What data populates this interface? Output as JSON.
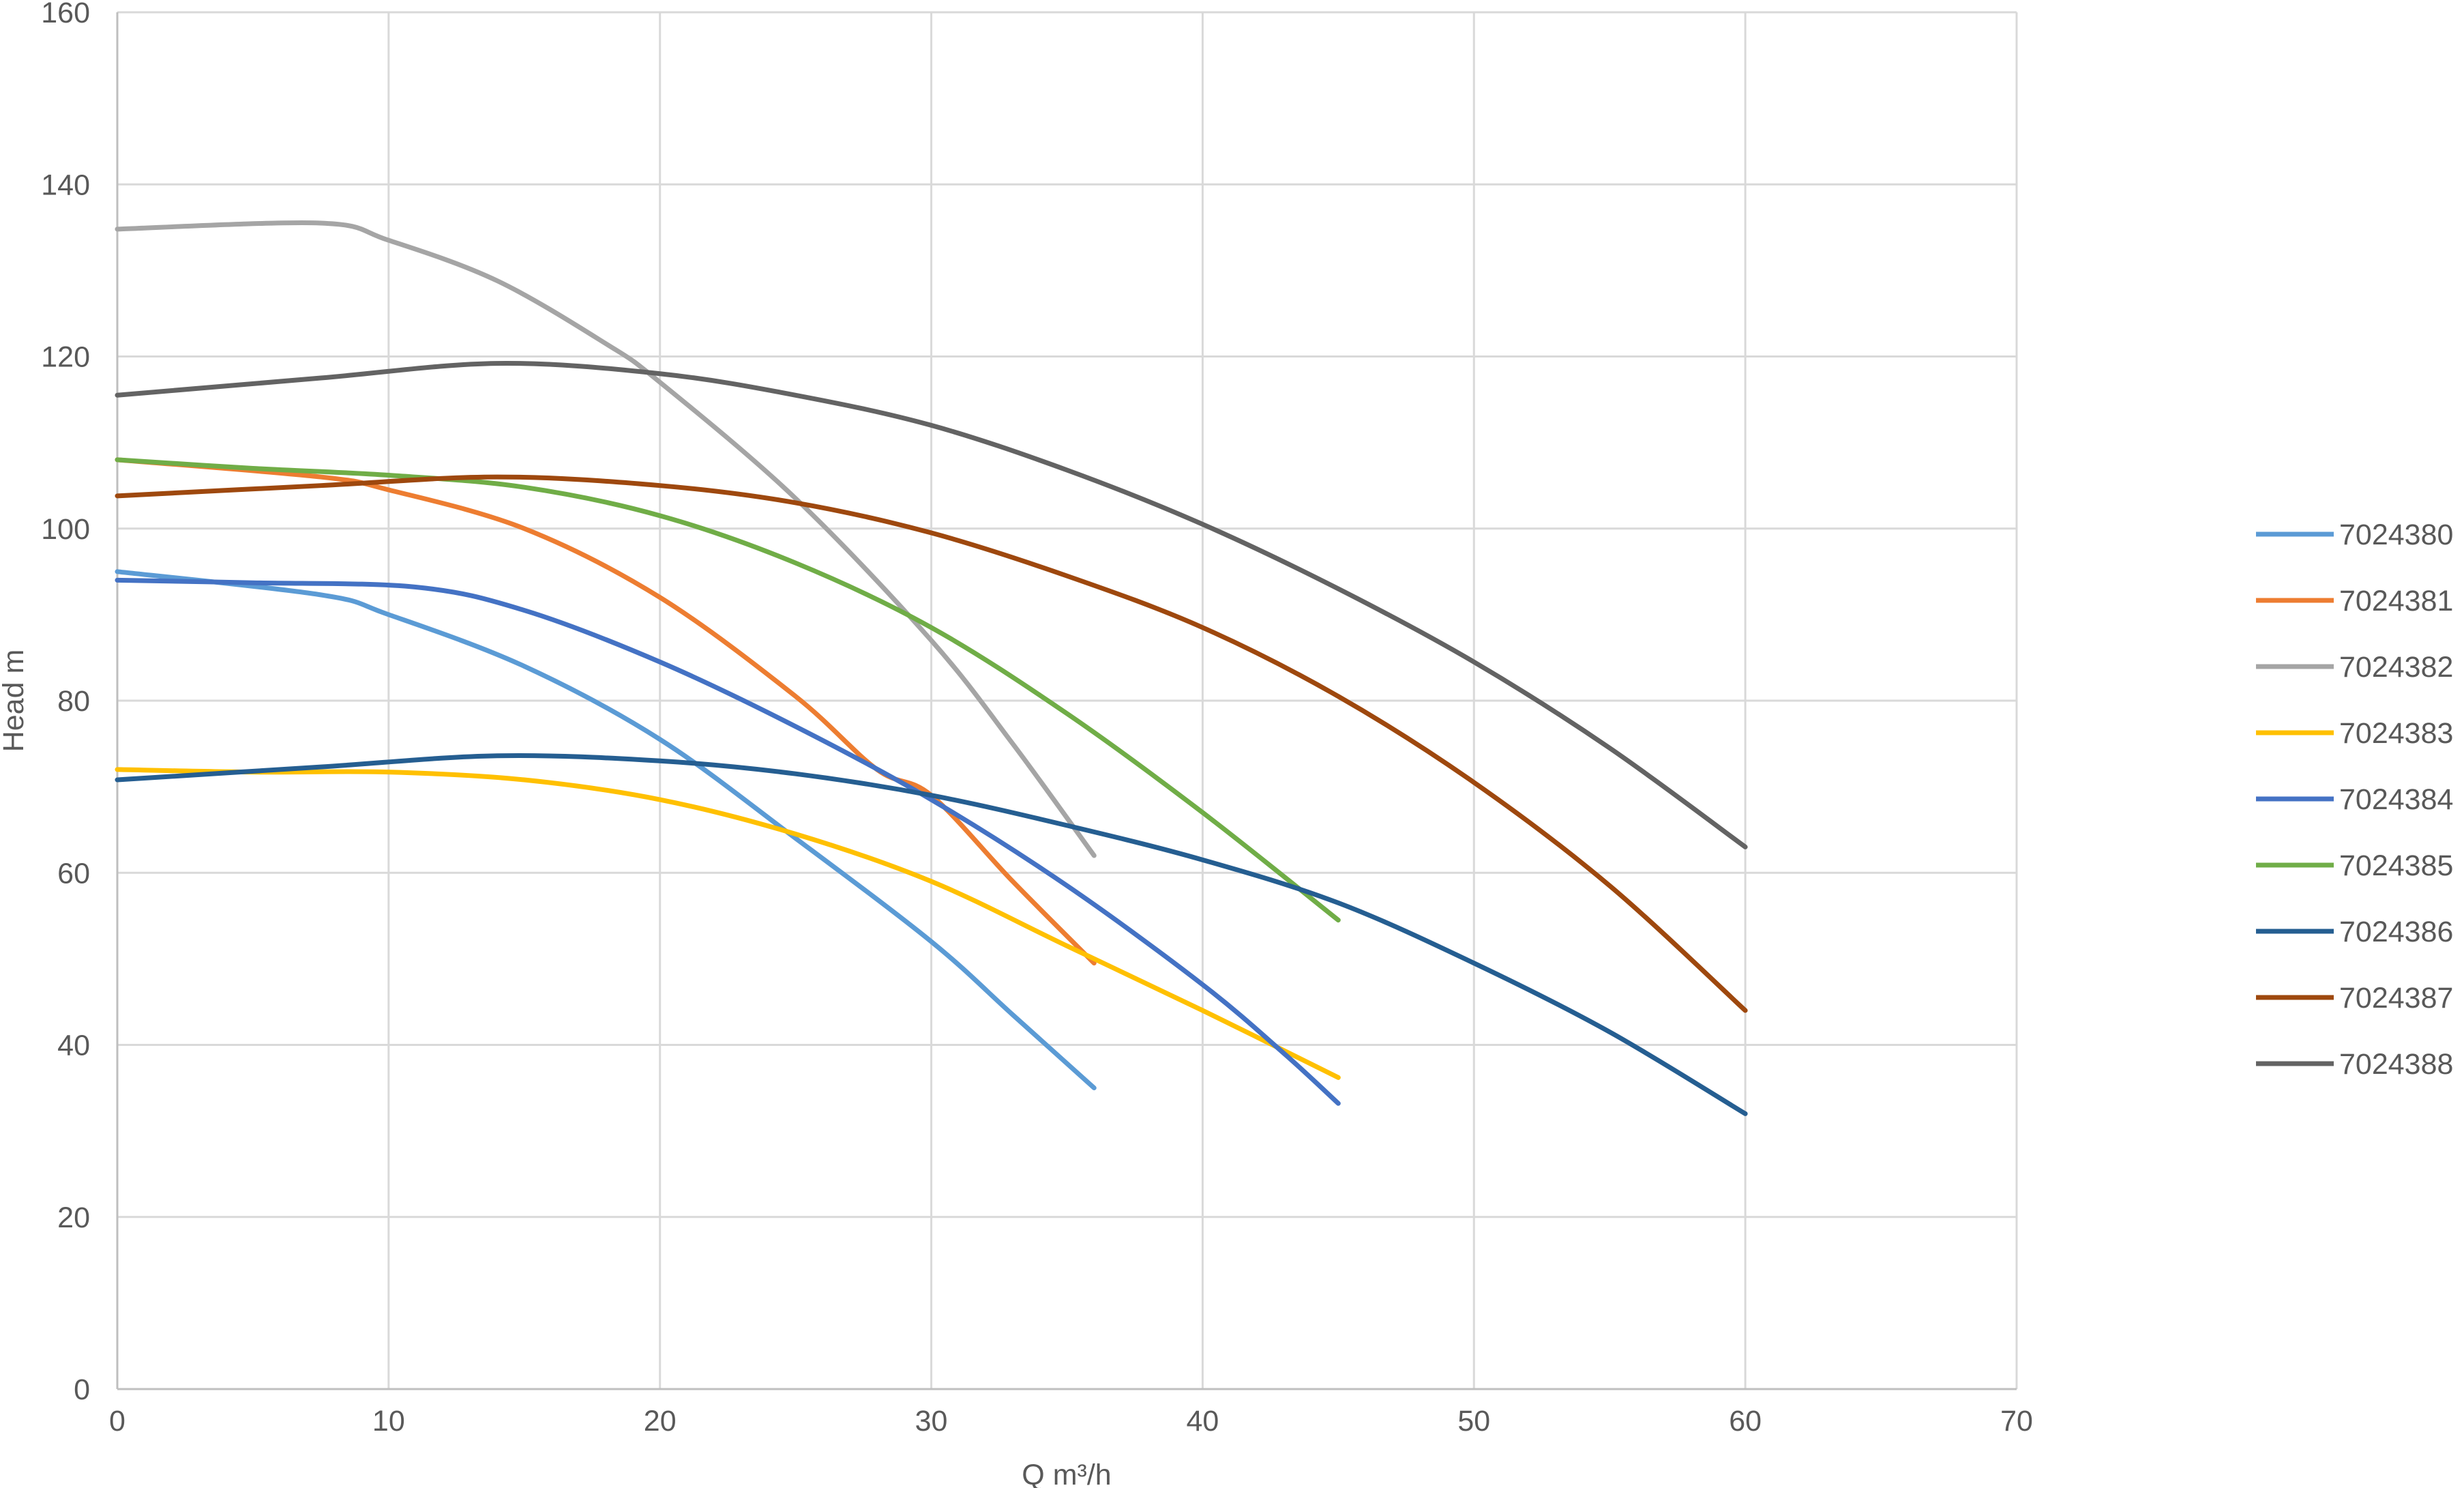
{
  "chart_data": {
    "type": "line",
    "title": "",
    "xlabel": "Q m³/h",
    "ylabel": "Head m",
    "xlim": [
      0,
      70
    ],
    "ylim": [
      0,
      160
    ],
    "x_ticks": [
      0,
      10,
      20,
      30,
      40,
      50,
      60,
      70
    ],
    "y_ticks": [
      0,
      20,
      40,
      60,
      80,
      100,
      120,
      140,
      160
    ],
    "grid": true,
    "legend_position": "right",
    "series": [
      {
        "name": "7024380",
        "color": "#5B9BD5",
        "x": [
          0,
          7.5,
          10,
          15,
          20,
          25,
          30,
          33,
          36
        ],
        "y": [
          95,
          92.3,
          90,
          84,
          75.5,
          64,
          52,
          43.5,
          35
        ]
      },
      {
        "name": "7024381",
        "color": "#ED7D31",
        "x": [
          0,
          7.5,
          10,
          15,
          20,
          25,
          28,
          30,
          33,
          36
        ],
        "y": [
          108,
          106,
          104.5,
          100,
          92,
          80.5,
          72,
          69,
          59,
          49.5
        ]
      },
      {
        "name": "7024382",
        "color": "#A5A5A5",
        "x": [
          0,
          7.5,
          10,
          14,
          18,
          20,
          25,
          30,
          33,
          36
        ],
        "y": [
          134.8,
          135.5,
          133.5,
          128.8,
          121.5,
          117,
          103.5,
          87,
          75,
          62
        ]
      },
      {
        "name": "7024383",
        "color": "#FFC000",
        "x": [
          0,
          5,
          10,
          15,
          20,
          25,
          30,
          35,
          40,
          45
        ],
        "y": [
          72,
          71.7,
          71.7,
          70.8,
          68.5,
          64.5,
          59,
          51.5,
          44,
          36.2
        ]
      },
      {
        "name": "7024384",
        "color": "#4472C4",
        "x": [
          0,
          5,
          11,
          15,
          20,
          25,
          30,
          35,
          40,
          43,
          45
        ],
        "y": [
          94,
          93.7,
          93.2,
          90.5,
          84.5,
          77,
          68.5,
          58.5,
          47,
          39,
          33.2
        ]
      },
      {
        "name": "7024385",
        "color": "#70AD47",
        "x": [
          0,
          5,
          10,
          15,
          20,
          25,
          30,
          35,
          40,
          45
        ],
        "y": [
          108,
          107,
          106.2,
          104.8,
          101.5,
          96,
          88.5,
          78.5,
          67,
          54.5
        ]
      },
      {
        "name": "7024386",
        "color": "#255E91",
        "x": [
          0,
          7.5,
          14,
          20,
          25,
          30,
          35,
          40,
          45,
          50,
          55,
          60
        ],
        "y": [
          70.8,
          72.3,
          73.6,
          73,
          71.5,
          69,
          65.5,
          61.5,
          56.5,
          49.5,
          41.5,
          32
        ]
      },
      {
        "name": "7024387",
        "color": "#9E480E",
        "x": [
          0,
          7.5,
          14,
          20,
          25,
          30,
          35,
          40,
          45,
          50,
          55,
          60
        ],
        "y": [
          103.8,
          105,
          106,
          105,
          103,
          99.5,
          94.5,
          88.5,
          80.5,
          70.5,
          58.5,
          44
        ]
      },
      {
        "name": "7024388",
        "color": "#636363",
        "x": [
          0,
          7.5,
          14,
          20,
          25,
          30,
          35,
          40,
          45,
          50,
          55,
          60
        ],
        "y": [
          115.5,
          117.5,
          119.2,
          118,
          115.5,
          112,
          106.8,
          100.5,
          93,
          84.5,
          74.5,
          63
        ]
      }
    ]
  }
}
